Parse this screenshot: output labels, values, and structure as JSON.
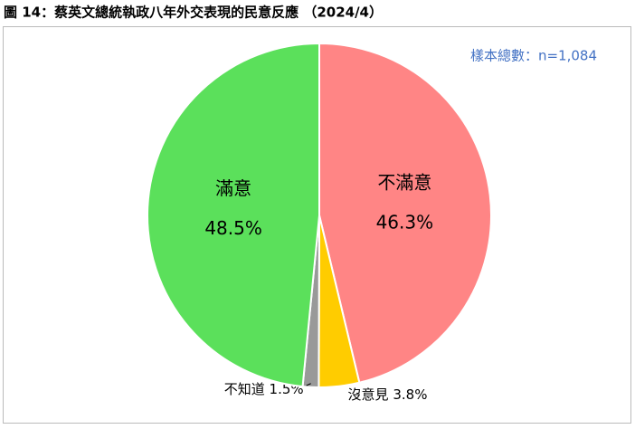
{
  "chart_data": {
    "type": "pie",
    "title": "圖 14：蔡英文總統執政八年外交表現的民意反應 （2024/4）",
    "subtitle": "樣本總數：n=1,084",
    "categories": [
      "不滿意",
      "沒意見",
      "不知道",
      "滿意"
    ],
    "values": [
      46.3,
      3.8,
      1.5,
      48.5
    ],
    "value_labels": [
      "46.3%",
      "3.8%",
      "1.5%",
      "48.5%"
    ],
    "colors": [
      "#ff8585",
      "#ffcc00",
      "#999999",
      "#5be05b"
    ]
  }
}
